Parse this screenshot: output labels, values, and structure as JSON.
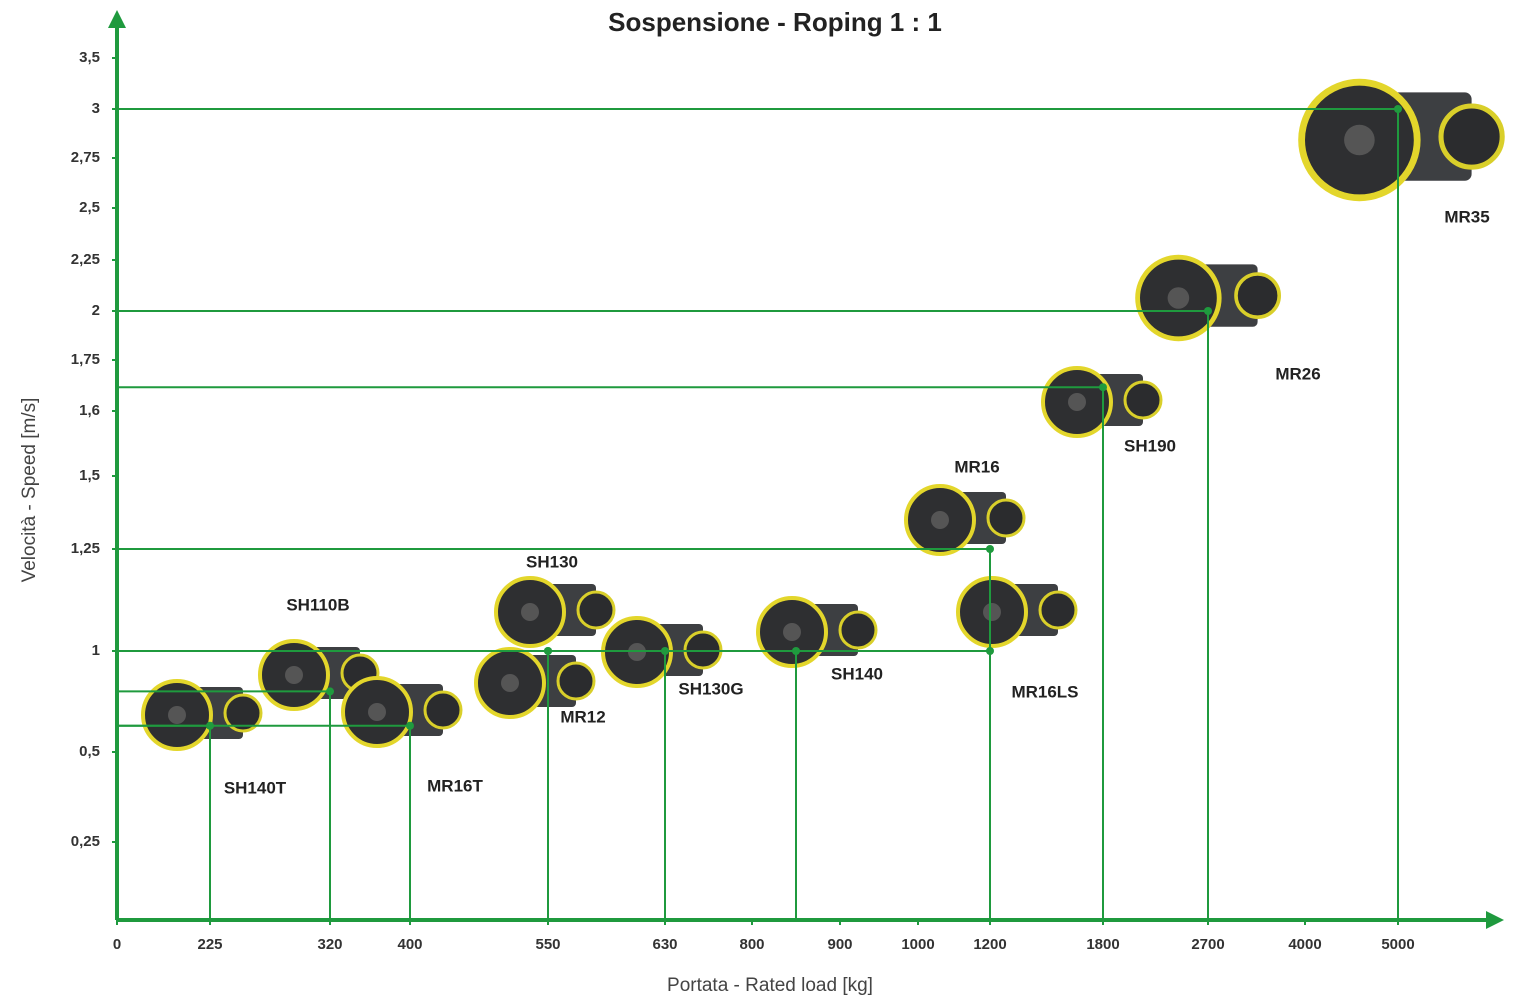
{
  "chart_data": {
    "type": "scatter",
    "title": "Sospensione - Roping 1 : 1",
    "x_label": "Portata - Rated load [kg]",
    "y_label": "Velocità - Speed [m/s]",
    "color": "#1f9a3e",
    "xlim": [
      0,
      5000
    ],
    "ylim": [
      0,
      3.5
    ],
    "xticks": [
      0,
      225,
      320,
      400,
      550,
      630,
      800,
      900,
      1000,
      1200,
      1800,
      2700,
      4000,
      5000
    ],
    "yticks": [
      {
        "value": 0.25,
        "label": "0,25"
      },
      {
        "value": 0.5,
        "label": "0,5"
      },
      1,
      {
        "value": 1.25,
        "label": "1,25"
      },
      {
        "value": 1.5,
        "label": "1,5"
      },
      {
        "value": 1.6,
        "label": "1,6"
      },
      {
        "value": 1.75,
        "label": "1,75"
      },
      2,
      {
        "value": 2.25,
        "label": "2,25"
      },
      {
        "value": 2.5,
        "label": "2,5"
      },
      {
        "value": 2.75,
        "label": "2,75"
      },
      3,
      {
        "value": 3.5,
        "label": "3,5"
      }
    ],
    "labels": [
      "SH140T",
      "SH110B",
      "MR16T",
      "SH130",
      "MR12",
      "SH130G",
      "SH140",
      "MR16",
      "MR16LS",
      "SH190",
      "MR26",
      "MR35"
    ],
    "x": [
      225,
      320,
      400,
      550,
      550,
      630,
      850,
      1200,
      1200,
      1800,
      2700,
      5000
    ],
    "values": [
      0.63,
      0.8,
      0.63,
      1,
      1,
      1,
      1,
      1.25,
      1,
      1.67,
      2,
      3
    ]
  }
}
